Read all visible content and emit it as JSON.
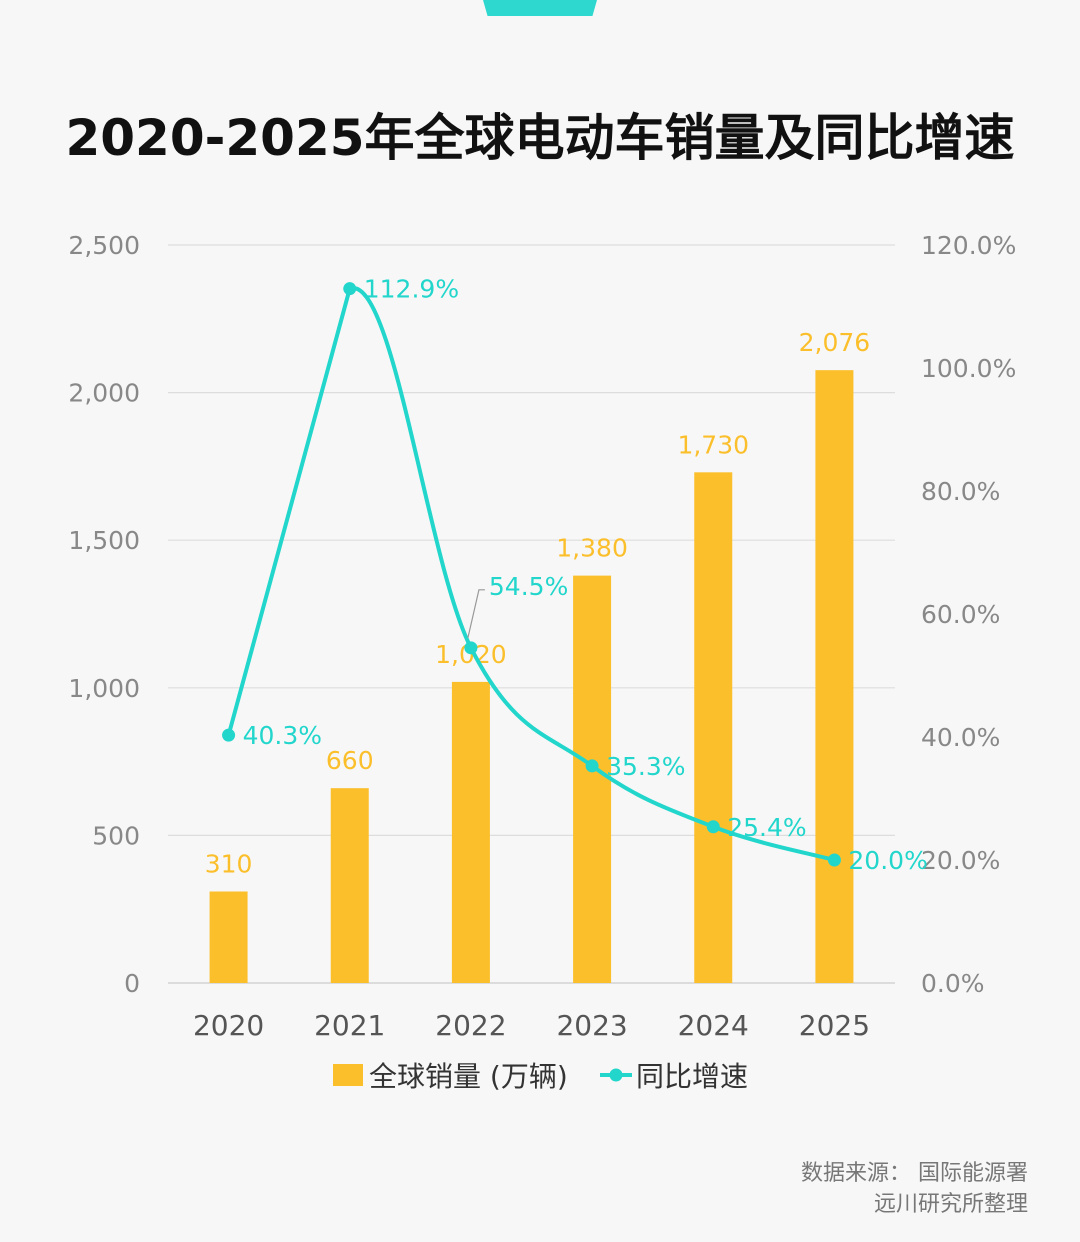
{
  "title": "2020-2025年全球电动车销量及同比增速",
  "colors": {
    "bar": "#fbbf2c",
    "line": "#22d6cc",
    "grid": "#dddddd",
    "axis_text": "#888888",
    "year_text": "#555555"
  },
  "chart_data": {
    "type": "bar+line",
    "categories": [
      "2020",
      "2021",
      "2022",
      "2023",
      "2024",
      "2025"
    ],
    "series": [
      {
        "name": "全球销量 (万辆)",
        "type": "bar",
        "axis": "left",
        "values": [
          310,
          660,
          1020,
          1380,
          1730,
          2076
        ],
        "labels": [
          "310",
          "660",
          "1,020",
          "1,380",
          "1,730",
          "2,076"
        ]
      },
      {
        "name": "同比增速",
        "type": "line",
        "axis": "right",
        "values": [
          40.3,
          112.9,
          54.5,
          35.3,
          25.4,
          20.0
        ],
        "labels": [
          "40.3%",
          "112.9%",
          "54.5%",
          "35.3%",
          "25.4%",
          "20.0%"
        ]
      }
    ],
    "ylim_left": [
      0,
      2500
    ],
    "ylim_right": [
      0,
      120
    ],
    "left_ticks": [
      "0",
      "500",
      "1,000",
      "1,500",
      "2,000",
      "2,500"
    ],
    "right_ticks": [
      "0.0%",
      "20.0%",
      "40.0%",
      "60.0%",
      "80.0%",
      "100.0%",
      "120.0%"
    ],
    "grid": true,
    "legend": "bottom"
  },
  "source": {
    "line1": "数据来源：  国际能源署",
    "line2": "远川研究所整理"
  }
}
